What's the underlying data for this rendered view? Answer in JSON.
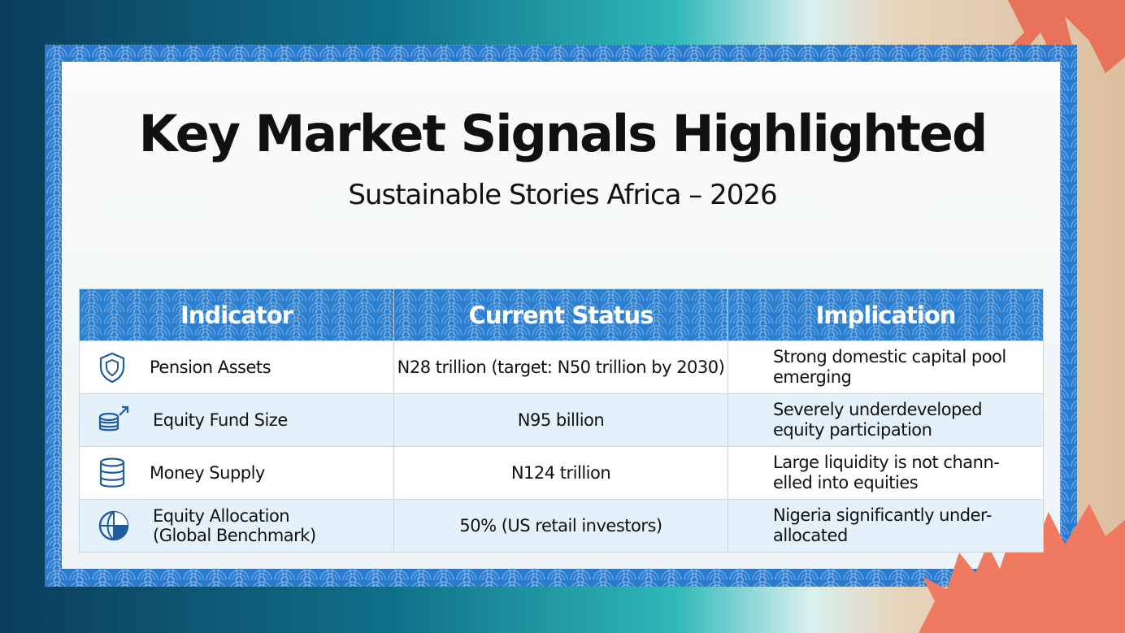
{
  "header": {
    "title": "Key Market Signals Highlighted",
    "subtitle": "Sustainable Stories Africa – 2026"
  },
  "table": {
    "columns": [
      "Indicator",
      "Current Status",
      "Implication"
    ],
    "rows": [
      [
        "Pension Assets",
        "N28 trillion (target: N50 trillion by 2030)",
        [
          "Strong domestic capital pool",
          "emerging"
        ]
      ],
      [
        "Equity Fund Size",
        "N95 billion",
        [
          "Severely underdeveloped",
          "equity participation"
        ]
      ],
      [
        "Money Supply",
        "N124 trillion",
        [
          "Large liquidity is not chann-",
          "elled into equities"
        ]
      ],
      [
        [
          "Equity Allocation",
          "(Global Benchmark)"
        ],
        "50% (US retail investors)",
        [
          "Nigeria significantly under-",
          "allocated"
        ]
      ]
    ]
  }
}
